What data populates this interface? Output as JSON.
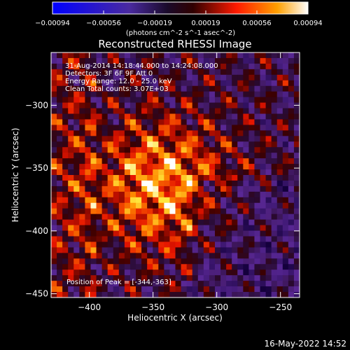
{
  "chart_data": {
    "type": "heatmap",
    "title": "Reconstructed RHESSI Image",
    "xlabel": "Heliocentric X (arcsec)",
    "ylabel": "Heliocentric Y (arcsec)",
    "xlim": [
      -430,
      -235
    ],
    "ylim": [
      -453,
      -258
    ],
    "x_ticks": [
      -400,
      -350,
      -300,
      -250
    ],
    "y_ticks": [
      -300,
      -350,
      -400,
      -450
    ],
    "colorbar": {
      "ticks": [
        "-0.00094",
        "-0.00056",
        "-0.00019",
        "0.00019",
        "0.00056",
        "0.00094"
      ],
      "range": [
        -0.00094,
        0.00094
      ],
      "units_line": "(photons cm^-2 s^-1 asec^-2)"
    },
    "peak": {
      "x": -344,
      "y": -363
    },
    "annotations": [
      "31-Aug-2014 14:18:44.000 to 14:24:08.000",
      "Detectors: 3F 6F 9F Att 0",
      "Energy Range: 12.0 - 25.0 keV",
      "Clean    Total counts: 3.07E+03"
    ],
    "peak_label": "Position of Peak = [-344,-363]",
    "colors": {
      "low": "#0000ff",
      "mid_low": "#5b2a8a",
      "mid": "#200000",
      "mid_high": "#ff0000",
      "high": "#ffffff"
    }
  },
  "footer": {
    "timestamp": "16-May-2022 14:52"
  }
}
